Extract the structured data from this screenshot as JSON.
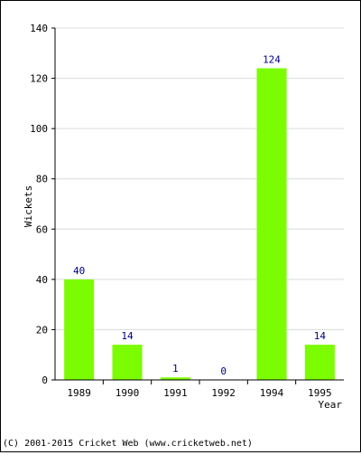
{
  "chart_data": {
    "type": "bar",
    "categories": [
      "1989",
      "1990",
      "1991",
      "1992",
      "1994",
      "1995"
    ],
    "values": [
      40,
      14,
      1,
      0,
      124,
      14
    ],
    "title": "",
    "xlabel": "Year",
    "ylabel": "Wickets",
    "ylim": [
      0,
      140
    ],
    "yticks": [
      0,
      20,
      40,
      60,
      80,
      100,
      120,
      140
    ],
    "grid": true,
    "legend": "none",
    "bar_color": "#7cfc00",
    "label_color": "#000080"
  },
  "footer": {
    "credit": "(C) 2001-2015 Cricket Web (www.cricketweb.net)"
  }
}
